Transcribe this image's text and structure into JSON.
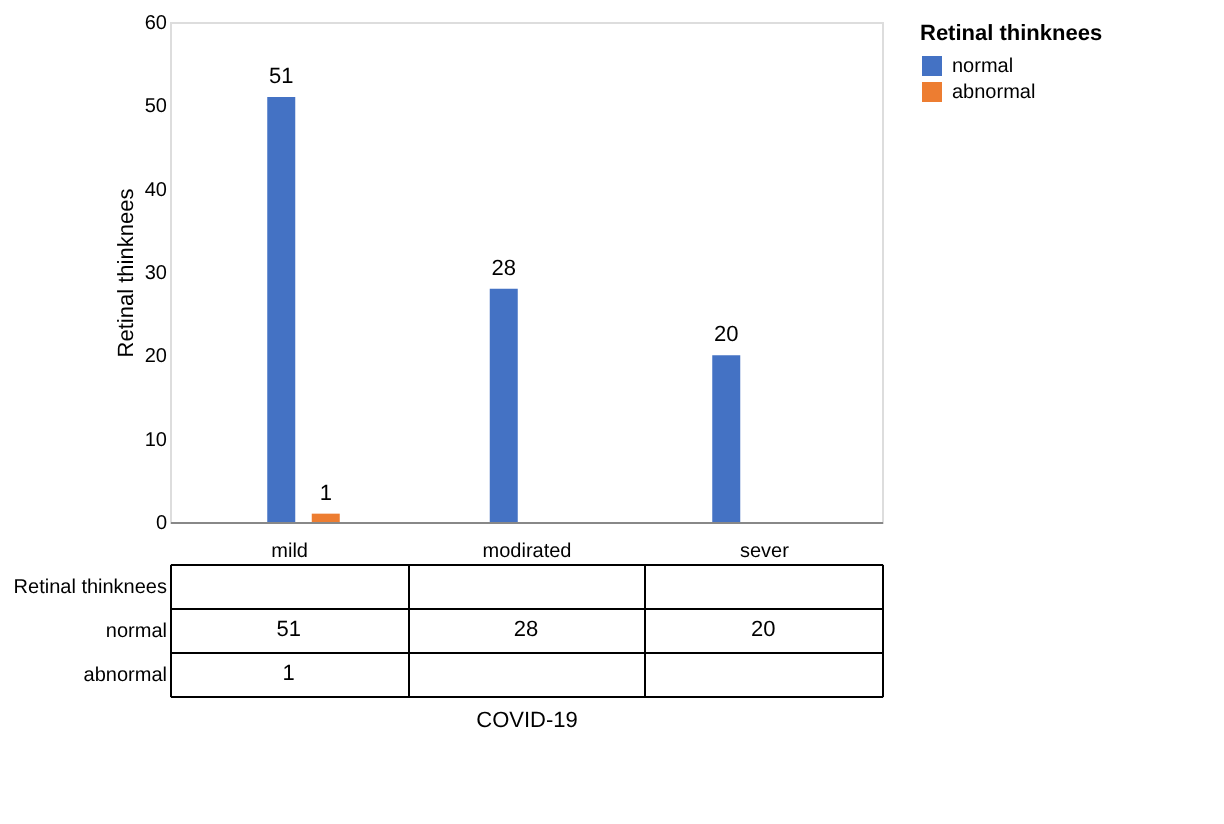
{
  "chart_data": {
    "type": "bar",
    "ylabel": "Retinal thinknees",
    "legend_title": "Retinal thinknees",
    "annotations": [
      "COVID-19",
      "51",
      "28",
      "20",
      "1"
    ],
    "categories": [
      "mild",
      "modirated",
      "sever"
    ],
    "series": [
      {
        "name": "normal",
        "color": "#4472c4",
        "values": [
          51,
          28,
          20
        ],
        "value_labels": [
          "51",
          "28",
          "20"
        ]
      },
      {
        "name": "abnormal",
        "color": "#ed7d31",
        "values": [
          1,
          null,
          null
        ],
        "value_labels": [
          "1",
          null,
          null
        ]
      }
    ],
    "ylim": [
      0,
      60
    ],
    "yticks": [
      0,
      10,
      20,
      30,
      40,
      50,
      60
    ],
    "grid": false,
    "legend": "right"
  }
}
